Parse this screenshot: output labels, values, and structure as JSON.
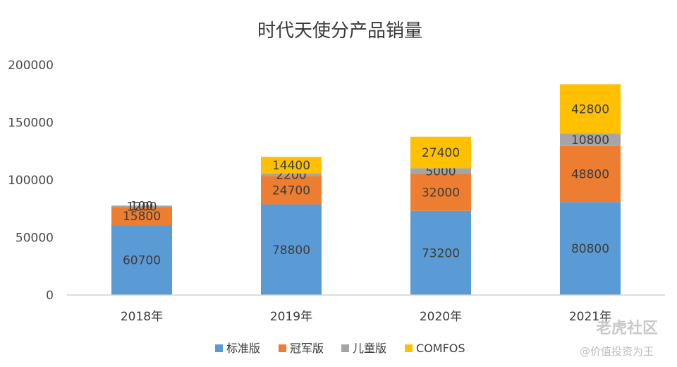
{
  "chart_data": {
    "type": "bar",
    "stacked": true,
    "title": "时代天使分产品销量",
    "categories": [
      "2018年",
      "2019年",
      "2020年",
      "2021年"
    ],
    "series": [
      {
        "name": "标准版",
        "color": "#5b9bd5",
        "values": [
          60700,
          78800,
          73200,
          80800
        ]
      },
      {
        "name": "冠军版",
        "color": "#ed7d31",
        "values": [
          15800,
          24700,
          32000,
          48800
        ]
      },
      {
        "name": "儿童版",
        "color": "#a5a5a5",
        "values": [
          1200,
          2200,
          5000,
          10800
        ]
      },
      {
        "name": "COMFOS",
        "color": "#ffc000",
        "values": [
          100,
          14400,
          27400,
          42800
        ]
      }
    ],
    "ylim": [
      0,
      200000
    ],
    "yticks": [
      0,
      50000,
      100000,
      150000,
      200000
    ],
    "grid": false,
    "legend": "bottom",
    "data_labels": true
  },
  "watermark": {
    "line1": "老虎社区",
    "line2": "@价值投资为王"
  }
}
